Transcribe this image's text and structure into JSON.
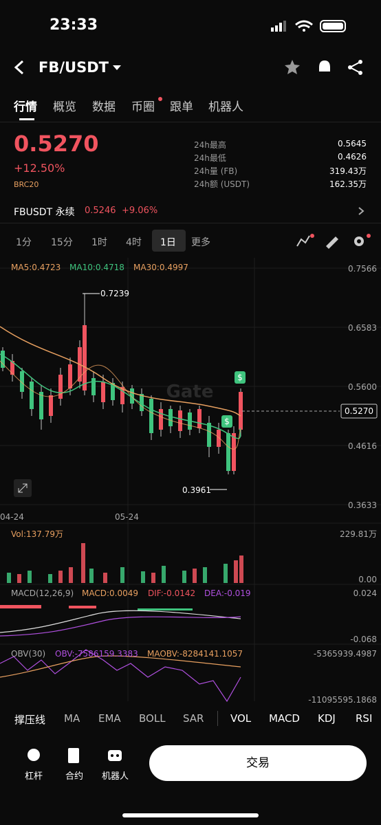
{
  "status": {
    "time": "23:33"
  },
  "header": {
    "pair": "FB/USDT"
  },
  "tabs": [
    "行情",
    "概览",
    "数据",
    "币圈",
    "跟单",
    "机器人"
  ],
  "price": {
    "last": "0.5270",
    "change": "+12.50%",
    "tag": "BRC20"
  },
  "stats": [
    {
      "label": "24h最高",
      "value": "0.5645"
    },
    {
      "label": "24h最低",
      "value": "0.4626"
    },
    {
      "label": "24h量 (FB)",
      "value": "319.43万"
    },
    {
      "label": "24h额 (USDT)",
      "value": "162.35万"
    }
  ],
  "perp": {
    "name": "FBUSDT 永续",
    "price": "0.5246",
    "change": "+9.06%"
  },
  "intervals": [
    "1分",
    "15分",
    "1时",
    "4时",
    "1日",
    "更多"
  ],
  "ma": [
    "MA5:0.4723",
    "MA10:0.4718",
    "MA30:0.4997"
  ],
  "price_axis": [
    "0.7566",
    "0.6583",
    "0.5600",
    "0.4616",
    "0.3633"
  ],
  "current": "0.5270",
  "high": "0.7239",
  "low": "0.3961",
  "dates": [
    "04-24",
    "05-24"
  ],
  "watermark": "Gate",
  "vol": {
    "label": "Vol:137.79万",
    "axis": [
      "229.81万",
      "0.00"
    ]
  },
  "macd": {
    "labels": [
      "MACD(12,26,9)",
      "MACD:0.0049",
      "DIF:-0.0142",
      "DEA:-0.019"
    ],
    "axis": [
      "0.024",
      "-0.068"
    ]
  },
  "obv": {
    "labels": [
      "OBV(30)",
      "OBV:-7586159.3383",
      "MAOBV:-8284141.1057"
    ],
    "axis": [
      "-5365939.4987",
      "-11095595.1868"
    ]
  },
  "indicators": [
    "撑压线",
    "MA",
    "EMA",
    "BOLL",
    "SAR",
    "VOL",
    "MACD",
    "KDJ",
    "RSI"
  ],
  "bottom": {
    "items": [
      "杠杆",
      "合约",
      "机器人"
    ],
    "button": "交易"
  }
}
